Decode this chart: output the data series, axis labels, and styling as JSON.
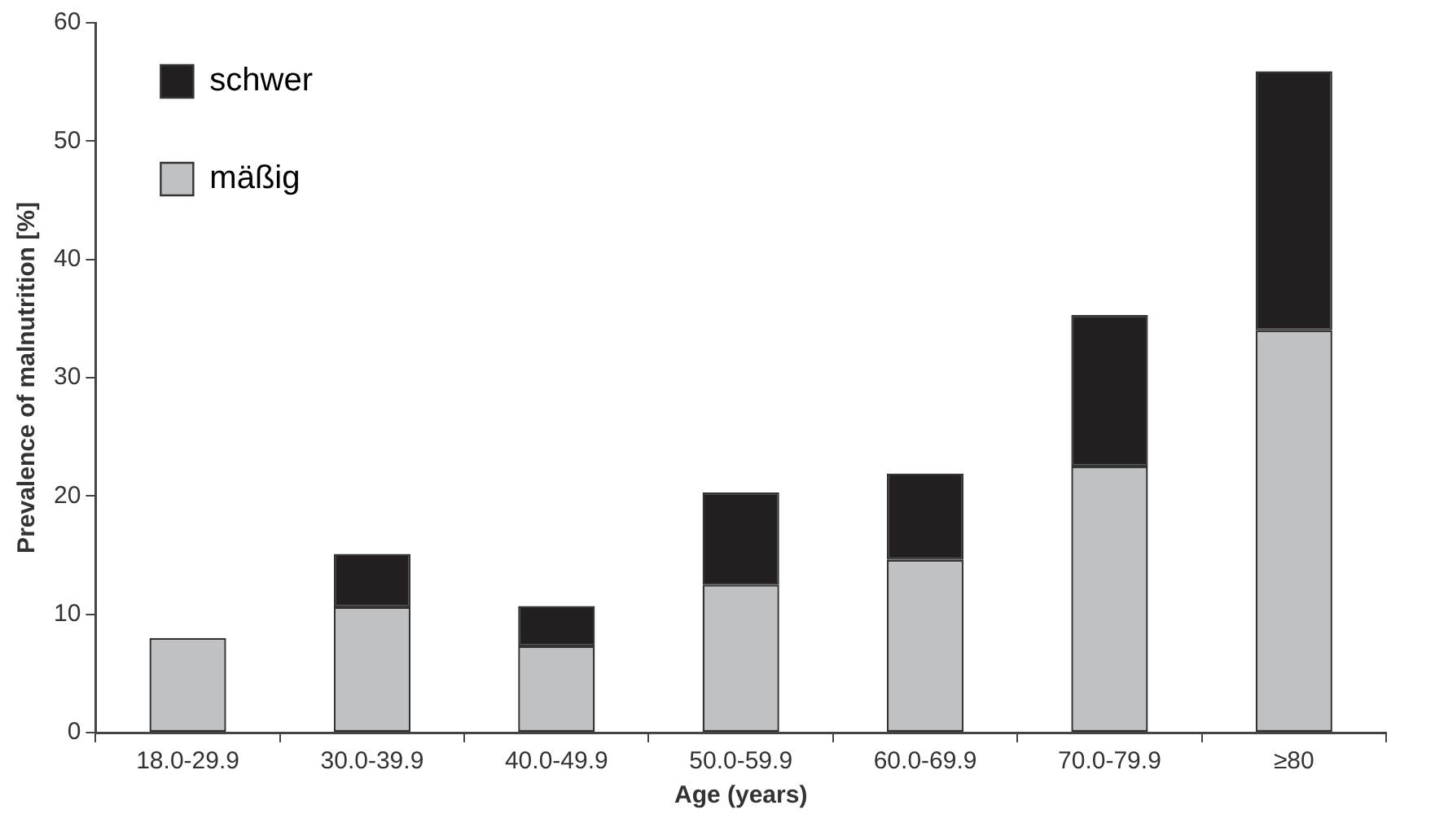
{
  "chart_data": {
    "type": "bar",
    "xlabel": "Age (years)",
    "ylabel": "Prevalence of malnutrition [%]",
    "categories": [
      "18.0-29.9",
      "30.0-39.9",
      "40.0-49.9",
      "50.0-59.9",
      "60.0-69.9",
      "70.0-79.9",
      "≥80"
    ],
    "series": [
      {
        "name": "mäßig",
        "color": "#c0c1c3",
        "values": [
          8.0,
          10.6,
          7.3,
          12.5,
          14.6,
          22.5,
          34.0
        ]
      },
      {
        "name": "schwer",
        "color": "#231f20",
        "values": [
          0,
          4.5,
          3.4,
          7.8,
          7.3,
          12.8,
          21.9
        ]
      }
    ],
    "stacked": true,
    "ylim": [
      0,
      60
    ],
    "yticks": [
      0,
      10,
      20,
      30,
      40,
      50,
      60
    ],
    "grid": false,
    "legend": "top left"
  }
}
